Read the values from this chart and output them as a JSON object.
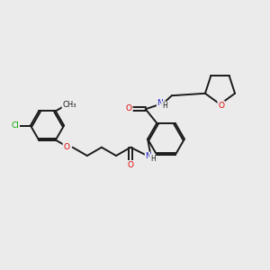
{
  "bg_color": "#ebebeb",
  "bond_color": "#1a1a1a",
  "atom_colors": {
    "O": "#e00000",
    "N": "#2020cc",
    "Cl": "#00aa00",
    "C": "#1a1a1a",
    "H": "#1a1a1a"
  },
  "figsize": [
    3.0,
    3.0
  ],
  "dpi": 100,
  "xlim": [
    0,
    10
  ],
  "ylim": [
    0,
    10
  ]
}
